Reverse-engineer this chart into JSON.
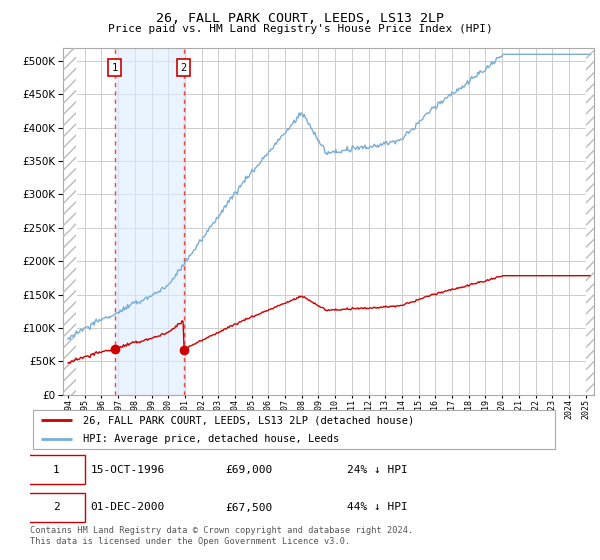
{
  "title": "26, FALL PARK COURT, LEEDS, LS13 2LP",
  "subtitle": "Price paid vs. HM Land Registry's House Price Index (HPI)",
  "hpi_color": "#7aaed6",
  "price_color": "#cc0000",
  "marker_color": "#cc0000",
  "dashed_line_color": "#ee3333",
  "shade_color": "#ddeeff",
  "transaction1": {
    "date": "15-OCT-1996",
    "price": 69000,
    "label": "1",
    "year": 1996.79
  },
  "transaction2": {
    "date": "01-DEC-2000",
    "price": 67500,
    "label": "2",
    "year": 2000.92
  },
  "legend_line1": "26, FALL PARK COURT, LEEDS, LS13 2LP (detached house)",
  "legend_line2": "HPI: Average price, detached house, Leeds",
  "table_row1": [
    "1",
    "15-OCT-1996",
    "£69,000",
    "24% ↓ HPI"
  ],
  "table_row2": [
    "2",
    "01-DEC-2000",
    "£67,500",
    "44% ↓ HPI"
  ],
  "footer": "Contains HM Land Registry data © Crown copyright and database right 2024.\nThis data is licensed under the Open Government Licence v3.0.",
  "ylim": [
    0,
    520000
  ],
  "yticks": [
    0,
    50000,
    100000,
    150000,
    200000,
    250000,
    300000,
    350000,
    400000,
    450000,
    500000
  ],
  "xmin": 1993.7,
  "xmax": 2025.5,
  "background_color": "#ffffff",
  "grid_color": "#cccccc"
}
